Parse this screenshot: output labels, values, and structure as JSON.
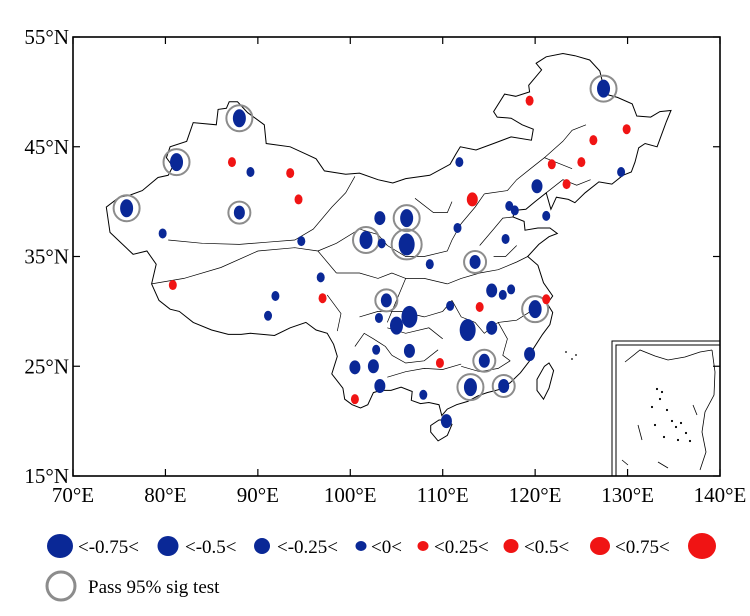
{
  "map": {
    "y_ticks": [
      "55°N",
      "45°N",
      "35°N",
      "25°N",
      "15°N"
    ],
    "x_ticks": [
      "70°E",
      "80°E",
      "90°E",
      "100°E",
      "110°E",
      "120°E",
      "130°E",
      "140°E"
    ],
    "lon_range": [
      70,
      140
    ],
    "lat_range": [
      15,
      55
    ]
  },
  "legend": {
    "size_items": [
      {
        "color": "#0a2896",
        "label": "<-0.75<"
      },
      {
        "color": "#0a2896",
        "label": "<-0.5<"
      },
      {
        "color": "#0a2896",
        "label": "<-0.25<"
      },
      {
        "color": "#0a2896",
        "label": "<0<"
      },
      {
        "color": "#f01414",
        "label": "<0.25<"
      },
      {
        "color": "#f01414",
        "label": "<0.5<"
      },
      {
        "color": "#f01414",
        "label": "<0.75<"
      }
    ],
    "end_marker_color": "#f01414",
    "sig_label": "Pass 95% sig test",
    "sig_ring_color": "#8c8c8c"
  },
  "stations": [
    {
      "lon": 75.8,
      "lat": 39.4,
      "v": -0.55,
      "sig": true
    },
    {
      "lon": 81.2,
      "lat": 43.6,
      "v": -0.55,
      "sig": true
    },
    {
      "lon": 88.0,
      "lat": 47.6,
      "v": -0.55,
      "sig": true
    },
    {
      "lon": 88.0,
      "lat": 39.0,
      "v": -0.4,
      "sig": true
    },
    {
      "lon": 79.7,
      "lat": 37.1,
      "v": -0.1,
      "sig": false
    },
    {
      "lon": 80.8,
      "lat": 32.4,
      "v": 0.1,
      "sig": false
    },
    {
      "lon": 87.2,
      "lat": 43.6,
      "v": 0.1,
      "sig": false
    },
    {
      "lon": 89.2,
      "lat": 42.7,
      "v": -0.1,
      "sig": false
    },
    {
      "lon": 93.5,
      "lat": 42.6,
      "v": 0.1,
      "sig": false
    },
    {
      "lon": 94.4,
      "lat": 40.2,
      "v": 0.1,
      "sig": false
    },
    {
      "lon": 94.7,
      "lat": 36.4,
      "v": -0.1,
      "sig": false
    },
    {
      "lon": 96.8,
      "lat": 33.1,
      "v": -0.1,
      "sig": false
    },
    {
      "lon": 97.0,
      "lat": 31.2,
      "v": 0.1,
      "sig": false
    },
    {
      "lon": 91.9,
      "lat": 31.4,
      "v": -0.1,
      "sig": false
    },
    {
      "lon": 91.1,
      "lat": 29.6,
      "v": -0.1,
      "sig": false
    },
    {
      "lon": 101.7,
      "lat": 36.5,
      "v": -0.55,
      "sig": true
    },
    {
      "lon": 103.2,
      "lat": 38.5,
      "v": -0.4,
      "sig": false
    },
    {
      "lon": 103.4,
      "lat": 36.2,
      "v": -0.1,
      "sig": false
    },
    {
      "lon": 106.1,
      "lat": 38.5,
      "v": -0.55,
      "sig": true
    },
    {
      "lon": 106.1,
      "lat": 36.1,
      "v": -0.8,
      "sig": true
    },
    {
      "lon": 108.6,
      "lat": 34.3,
      "v": -0.1,
      "sig": false
    },
    {
      "lon": 111.6,
      "lat": 37.6,
      "v": -0.1,
      "sig": false
    },
    {
      "lon": 111.8,
      "lat": 43.6,
      "v": -0.1,
      "sig": false
    },
    {
      "lon": 113.2,
      "lat": 40.2,
      "v": 0.4,
      "sig": false
    },
    {
      "lon": 113.5,
      "lat": 34.5,
      "v": -0.4,
      "sig": true
    },
    {
      "lon": 117.2,
      "lat": 39.6,
      "v": -0.1,
      "sig": false
    },
    {
      "lon": 117.8,
      "lat": 39.2,
      "v": -0.1,
      "sig": false
    },
    {
      "lon": 116.8,
      "lat": 36.6,
      "v": -0.1,
      "sig": false
    },
    {
      "lon": 121.2,
      "lat": 38.7,
      "v": -0.1,
      "sig": false
    },
    {
      "lon": 120.2,
      "lat": 41.4,
      "v": -0.4,
      "sig": false
    },
    {
      "lon": 119.4,
      "lat": 49.2,
      "v": 0.1,
      "sig": false
    },
    {
      "lon": 127.4,
      "lat": 50.3,
      "v": -0.55,
      "sig": true
    },
    {
      "lon": 121.8,
      "lat": 43.4,
      "v": 0.1,
      "sig": false
    },
    {
      "lon": 123.4,
      "lat": 41.6,
      "v": 0.1,
      "sig": false
    },
    {
      "lon": 125.0,
      "lat": 43.6,
      "v": 0.1,
      "sig": false
    },
    {
      "lon": 126.3,
      "lat": 45.6,
      "v": 0.1,
      "sig": false
    },
    {
      "lon": 129.9,
      "lat": 46.6,
      "v": 0.1,
      "sig": false
    },
    {
      "lon": 129.3,
      "lat": 42.7,
      "v": -0.1,
      "sig": false
    },
    {
      "lon": 103.9,
      "lat": 31.0,
      "v": -0.4,
      "sig": true
    },
    {
      "lon": 103.1,
      "lat": 29.4,
      "v": -0.1,
      "sig": false
    },
    {
      "lon": 105.0,
      "lat": 28.7,
      "v": -0.55,
      "sig": false
    },
    {
      "lon": 106.4,
      "lat": 29.5,
      "v": -0.8,
      "sig": false
    },
    {
      "lon": 106.4,
      "lat": 26.4,
      "v": -0.4,
      "sig": false
    },
    {
      "lon": 102.8,
      "lat": 26.5,
      "v": -0.1,
      "sig": false
    },
    {
      "lon": 102.5,
      "lat": 25.0,
      "v": -0.4,
      "sig": false
    },
    {
      "lon": 100.5,
      "lat": 24.9,
      "v": -0.4,
      "sig": false
    },
    {
      "lon": 103.2,
      "lat": 23.2,
      "v": -0.4,
      "sig": false
    },
    {
      "lon": 100.5,
      "lat": 22.0,
      "v": 0.1,
      "sig": false
    },
    {
      "lon": 107.9,
      "lat": 22.4,
      "v": -0.1,
      "sig": false
    },
    {
      "lon": 109.7,
      "lat": 25.3,
      "v": 0.1,
      "sig": false
    },
    {
      "lon": 110.8,
      "lat": 30.5,
      "v": -0.1,
      "sig": false
    },
    {
      "lon": 112.7,
      "lat": 28.3,
      "v": -0.8,
      "sig": false
    },
    {
      "lon": 114.0,
      "lat": 30.4,
      "v": 0.1,
      "sig": false
    },
    {
      "lon": 115.3,
      "lat": 31.9,
      "v": -0.4,
      "sig": false
    },
    {
      "lon": 115.3,
      "lat": 28.5,
      "v": -0.4,
      "sig": false
    },
    {
      "lon": 116.5,
      "lat": 31.5,
      "v": -0.1,
      "sig": false
    },
    {
      "lon": 117.4,
      "lat": 32.0,
      "v": -0.1,
      "sig": false
    },
    {
      "lon": 120.0,
      "lat": 30.2,
      "v": -0.55,
      "sig": true
    },
    {
      "lon": 121.2,
      "lat": 31.1,
      "v": 0.1,
      "sig": false
    },
    {
      "lon": 114.5,
      "lat": 25.5,
      "v": -0.4,
      "sig": true
    },
    {
      "lon": 113.0,
      "lat": 23.1,
      "v": -0.55,
      "sig": true
    },
    {
      "lon": 116.6,
      "lat": 23.2,
      "v": -0.4,
      "sig": true
    },
    {
      "lon": 119.4,
      "lat": 26.1,
      "v": -0.4,
      "sig": false
    },
    {
      "lon": 110.4,
      "lat": 20.0,
      "v": -0.4,
      "sig": false
    }
  ]
}
